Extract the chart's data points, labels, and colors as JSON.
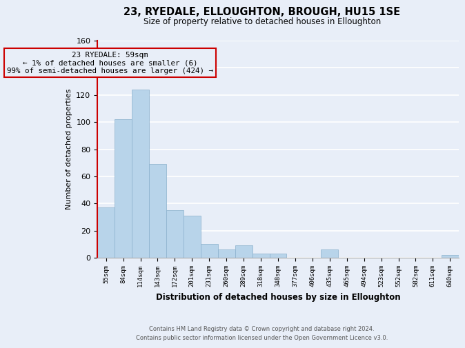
{
  "title": "23, RYEDALE, ELLOUGHTON, BROUGH, HU15 1SE",
  "subtitle": "Size of property relative to detached houses in Elloughton",
  "xlabel": "Distribution of detached houses by size in Elloughton",
  "ylabel": "Number of detached properties",
  "bin_labels": [
    "55sqm",
    "84sqm",
    "114sqm",
    "143sqm",
    "172sqm",
    "201sqm",
    "231sqm",
    "260sqm",
    "289sqm",
    "318sqm",
    "348sqm",
    "377sqm",
    "406sqm",
    "435sqm",
    "465sqm",
    "494sqm",
    "523sqm",
    "552sqm",
    "582sqm",
    "611sqm",
    "640sqm"
  ],
  "bar_heights": [
    37,
    102,
    124,
    69,
    35,
    31,
    10,
    6,
    9,
    3,
    3,
    0,
    0,
    6,
    0,
    0,
    0,
    0,
    0,
    0,
    2
  ],
  "bar_color": "#b8d4ea",
  "highlight_edge_color": "#cc0000",
  "annotation_line1": "23 RYEDALE: 59sqm",
  "annotation_line2": "← 1% of detached houses are smaller (6)",
  "annotation_line3": "99% of semi-detached houses are larger (424) →",
  "ylim": [
    0,
    160
  ],
  "yticks": [
    0,
    20,
    40,
    60,
    80,
    100,
    120,
    140,
    160
  ],
  "footer_line1": "Contains HM Land Registry data © Crown copyright and database right 2024.",
  "footer_line2": "Contains public sector information licensed under the Open Government Licence v3.0.",
  "bg_color": "#e8eef8",
  "plot_bg_color": "#e8eef8",
  "grid_color": "#ffffff"
}
